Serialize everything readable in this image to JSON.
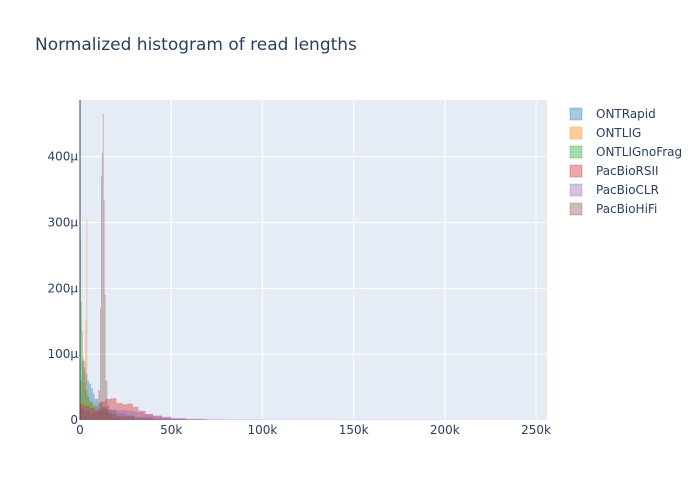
{
  "chart_data": {
    "type": "bar",
    "title": "Normalized histogram of read lengths",
    "xlabel": "",
    "ylabel": "",
    "xlim": [
      0,
      256000
    ],
    "ylim": [
      0,
      486
    ],
    "y_unit_note": "probability density ×1e-6",
    "x_ticks": [
      {
        "value": 0,
        "label": "0"
      },
      {
        "value": 50000,
        "label": "50k"
      },
      {
        "value": 100000,
        "label": "100k"
      },
      {
        "value": 150000,
        "label": "150k"
      },
      {
        "value": 200000,
        "label": "200k"
      },
      {
        "value": 250000,
        "label": "250k"
      }
    ],
    "y_ticks": [
      {
        "value": 0,
        "label": "0"
      },
      {
        "value": 100,
        "label": "100µ"
      },
      {
        "value": 200,
        "label": "200µ"
      },
      {
        "value": 300,
        "label": "300µ"
      },
      {
        "value": 400,
        "label": "400µ"
      }
    ],
    "grid": true,
    "legend_position": "top-right",
    "background": "#e5ecf6",
    "series": [
      {
        "name": "ONTRapid",
        "color": "#1f77b4",
        "bins": [
          [
            0,
            1000,
            60
          ],
          [
            1000,
            2000,
            90
          ],
          [
            2000,
            3000,
            80
          ],
          [
            3000,
            4000,
            70
          ],
          [
            4000,
            5000,
            60
          ],
          [
            5000,
            6000,
            55
          ],
          [
            6000,
            7000,
            48
          ],
          [
            7000,
            8000,
            40
          ],
          [
            8000,
            10000,
            32
          ],
          [
            10000,
            12000,
            26
          ],
          [
            12000,
            15000,
            20
          ],
          [
            15000,
            20000,
            15
          ],
          [
            20000,
            25000,
            10
          ],
          [
            25000,
            30000,
            7
          ],
          [
            30000,
            40000,
            4
          ],
          [
            40000,
            50000,
            2
          ],
          [
            50000,
            60000,
            1
          ]
        ]
      },
      {
        "name": "ONTLIG",
        "color": "#ff7f0e",
        "bins": [
          [
            0,
            1000,
            30
          ],
          [
            1000,
            2000,
            55
          ],
          [
            2000,
            3000,
            90
          ],
          [
            3000,
            3500,
            150
          ],
          [
            3500,
            4000,
            305
          ],
          [
            4000,
            5000,
            40
          ],
          [
            5000,
            6000,
            30
          ],
          [
            6000,
            8000,
            25
          ],
          [
            8000,
            10000,
            20
          ],
          [
            10000,
            15000,
            14
          ],
          [
            15000,
            20000,
            9
          ],
          [
            20000,
            30000,
            5
          ],
          [
            30000,
            45000,
            2
          ]
        ]
      },
      {
        "name": "ONTLIGnoFrag",
        "color": "#2ca02c",
        "bins": [
          [
            0,
            500,
            275
          ],
          [
            500,
            1000,
            180
          ],
          [
            1000,
            1500,
            135
          ],
          [
            1500,
            2000,
            95
          ],
          [
            2000,
            2500,
            75
          ],
          [
            2500,
            3000,
            58
          ],
          [
            3000,
            4000,
            45
          ],
          [
            4000,
            5000,
            35
          ],
          [
            5000,
            7000,
            28
          ],
          [
            7000,
            10000,
            22
          ],
          [
            10000,
            15000,
            16
          ],
          [
            15000,
            20000,
            11
          ],
          [
            20000,
            30000,
            6
          ],
          [
            30000,
            40000,
            3
          ],
          [
            40000,
            55000,
            1
          ]
        ]
      },
      {
        "name": "PacBioRSII",
        "color": "#d62728",
        "bins": [
          [
            0,
            2000,
            25
          ],
          [
            2000,
            5000,
            22
          ],
          [
            5000,
            8000,
            18
          ],
          [
            8000,
            11000,
            14
          ],
          [
            11000,
            14000,
            28
          ],
          [
            14000,
            17000,
            32
          ],
          [
            17000,
            20000,
            33
          ],
          [
            20000,
            23000,
            26
          ],
          [
            23000,
            26000,
            24
          ],
          [
            26000,
            29000,
            25
          ],
          [
            29000,
            32000,
            20
          ],
          [
            32000,
            36000,
            14
          ],
          [
            36000,
            40000,
            9
          ],
          [
            40000,
            45000,
            6
          ],
          [
            45000,
            50000,
            4
          ],
          [
            50000,
            58000,
            2
          ],
          [
            58000,
            70000,
            1
          ]
        ]
      },
      {
        "name": "PacBioCLR",
        "color": "#9467bd",
        "bins": [
          [
            0,
            3000,
            20
          ],
          [
            3000,
            6000,
            18
          ],
          [
            6000,
            10000,
            16
          ],
          [
            10000,
            15000,
            17
          ],
          [
            15000,
            20000,
            16
          ],
          [
            20000,
            25000,
            15
          ],
          [
            25000,
            30000,
            14
          ],
          [
            30000,
            35000,
            12
          ],
          [
            35000,
            40000,
            9
          ],
          [
            40000,
            45000,
            7
          ],
          [
            45000,
            50000,
            5
          ],
          [
            50000,
            58000,
            3
          ],
          [
            58000,
            68000,
            2
          ],
          [
            68000,
            80000,
            1
          ],
          [
            80000,
            100000,
            0.6
          ],
          [
            100000,
            140000,
            0.4
          ],
          [
            140000,
            200000,
            0.3
          ],
          [
            200000,
            250000,
            0.2
          ]
        ]
      },
      {
        "name": "PacBioHiFi",
        "color": "#8c564b",
        "bins": [
          [
            0,
            2000,
            18
          ],
          [
            2000,
            5000,
            14
          ],
          [
            5000,
            8000,
            10
          ],
          [
            8000,
            10000,
            12
          ],
          [
            10000,
            11000,
            45
          ],
          [
            11000,
            11500,
            170
          ],
          [
            11500,
            12000,
            370
          ],
          [
            12000,
            12500,
            405
          ],
          [
            12500,
            13000,
            465
          ],
          [
            13000,
            13500,
            335
          ],
          [
            13500,
            14000,
            190
          ],
          [
            14000,
            15000,
            60
          ],
          [
            15000,
            16000,
            22
          ],
          [
            16000,
            18000,
            8
          ],
          [
            18000,
            22000,
            3
          ],
          [
            22000,
            30000,
            1
          ]
        ]
      }
    ]
  }
}
